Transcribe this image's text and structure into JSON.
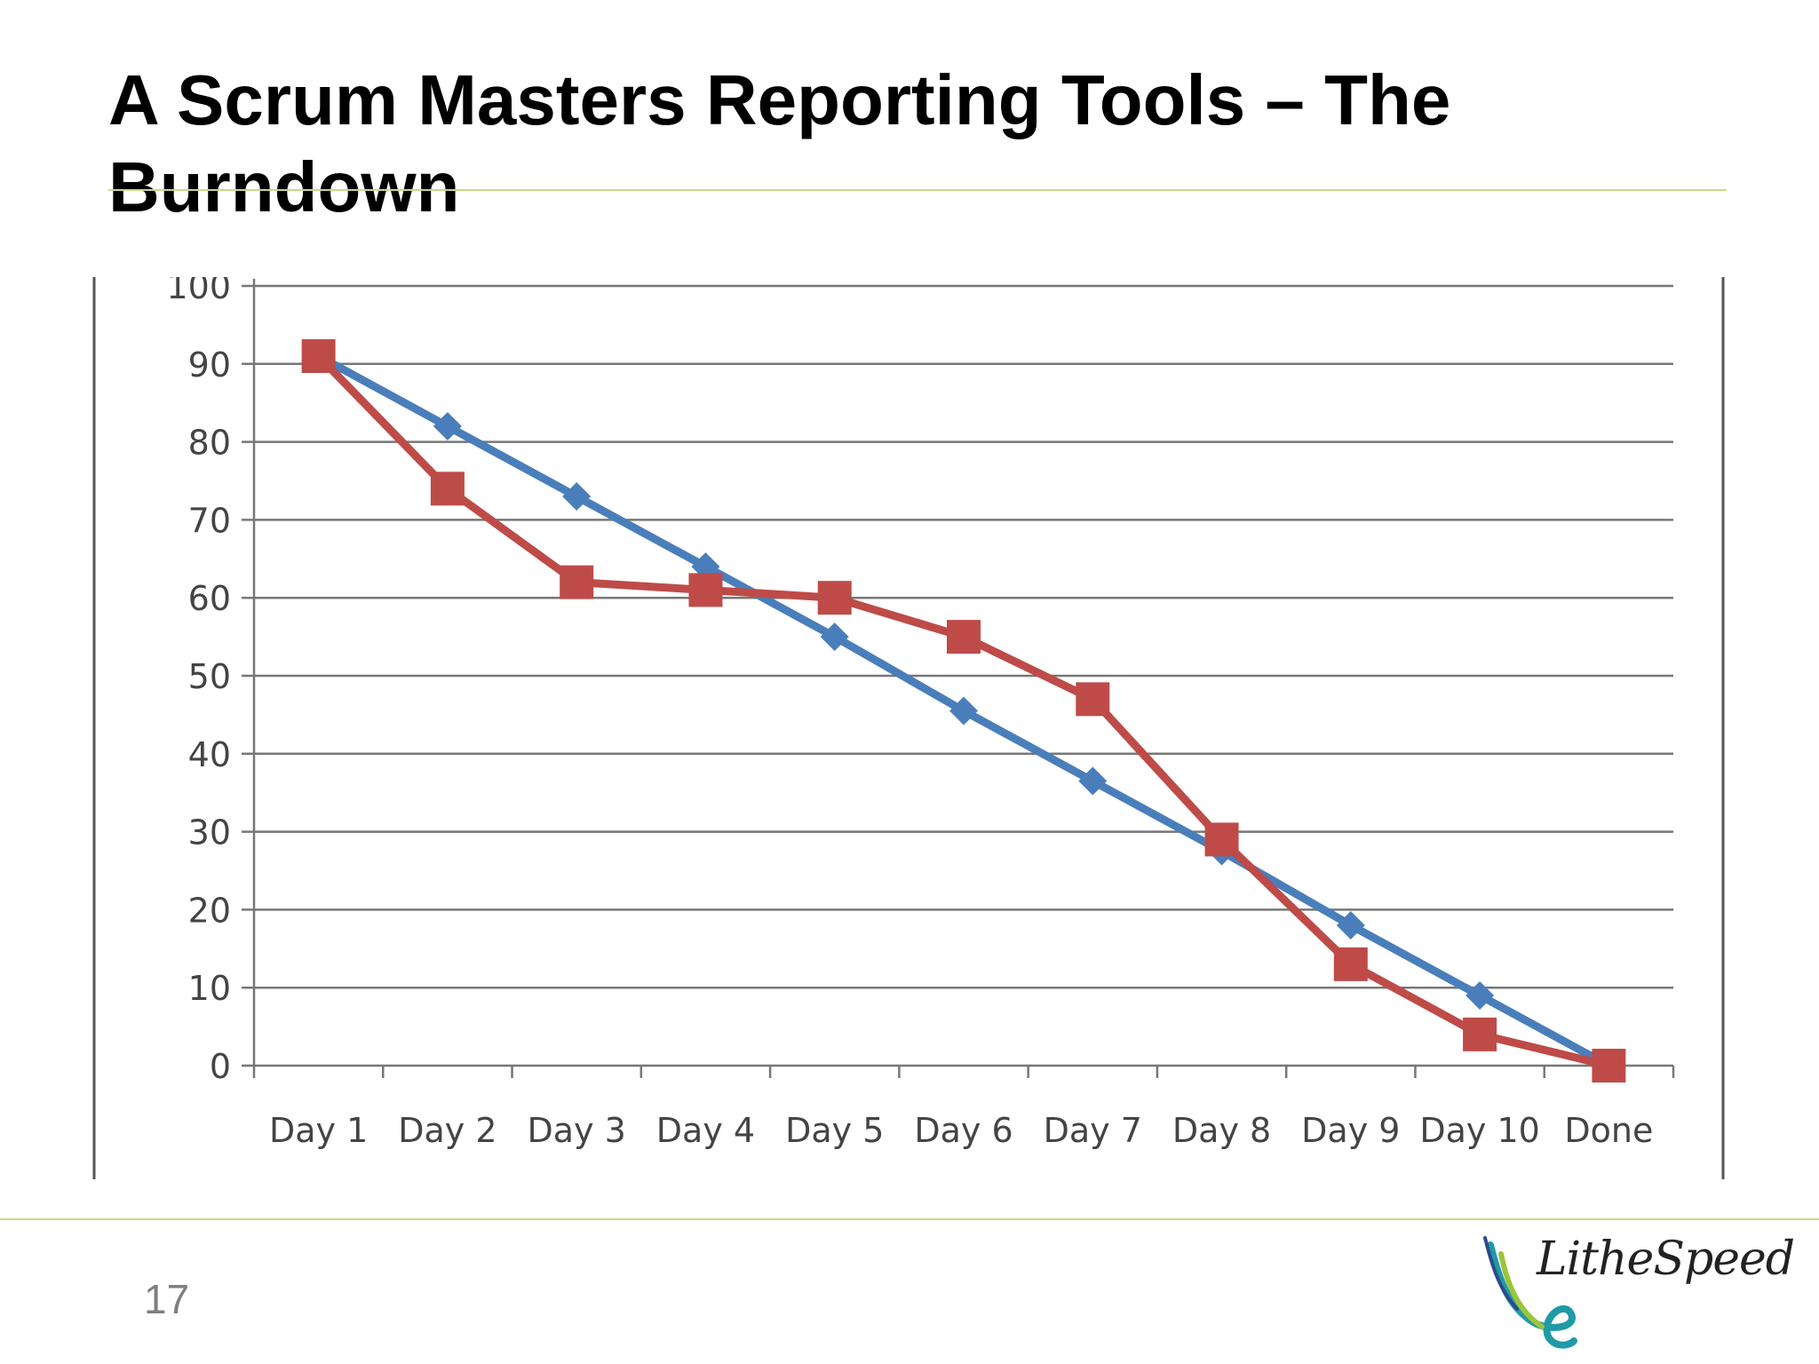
{
  "slide": {
    "title": "A Scrum Masters Reporting Tools – The Burndown",
    "page_number": "17"
  },
  "logo": {
    "text": "LitheSpeed",
    "colors": [
      "#1f9aa6",
      "#9cc43c",
      "#2e4a8a"
    ]
  },
  "chart_data": {
    "type": "line",
    "title": "",
    "xlabel": "",
    "ylabel": "",
    "categories": [
      "Day 1",
      "Day 2",
      "Day 3",
      "Day 4",
      "Day 5",
      "Day 6",
      "Day 7",
      "Day 8",
      "Day 9",
      "Day 10",
      "Done"
    ],
    "ylim": [
      0,
      100
    ],
    "yticks": [
      0,
      10,
      20,
      30,
      40,
      50,
      60,
      70,
      80,
      90,
      100
    ],
    "grid": true,
    "legend": "none",
    "series": [
      {
        "color": "#4a7ebb",
        "marker": "diamond",
        "values": [
          91,
          82,
          73,
          64,
          55,
          45.5,
          36.5,
          27.5,
          18,
          9,
          0
        ]
      },
      {
        "color": "#be4b48",
        "marker": "square",
        "values": [
          91,
          74,
          62,
          61,
          60,
          55,
          47,
          29,
          13,
          4,
          0
        ]
      }
    ]
  }
}
